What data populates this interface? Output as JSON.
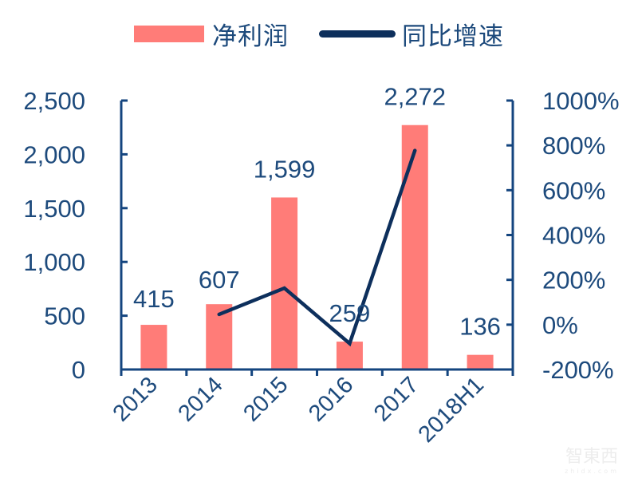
{
  "legend": {
    "bar_label": "净利润",
    "line_label": "同比增速"
  },
  "colors": {
    "bar": "#ff7c78",
    "line": "#0d2f5c",
    "axis": "#14457f",
    "text": "#1d4a7c"
  },
  "watermark": {
    "main": "智東西",
    "sub": "zhidx.com"
  },
  "chart_data": {
    "type": "bar",
    "title": "",
    "categories": [
      "2013",
      "2014",
      "2015",
      "2016",
      "2017",
      "2018H1"
    ],
    "series": [
      {
        "name": "净利润",
        "type": "bar",
        "axis": "left",
        "values": [
          415,
          607,
          1599,
          259,
          2272,
          136
        ],
        "labels": [
          "415",
          "607",
          "1,599",
          "259",
          "2,272",
          "136"
        ]
      },
      {
        "name": "同比增速",
        "type": "line",
        "axis": "right",
        "values": [
          null,
          46,
          163,
          -84,
          777,
          null
        ],
        "unit": "%"
      }
    ],
    "left_axis": {
      "ylim": [
        0,
        2500
      ],
      "ticks": [
        0,
        500,
        1000,
        1500,
        2000,
        2500
      ],
      "tick_labels": [
        "0",
        "500",
        "1,000",
        "1,500",
        "2,000",
        "2,500"
      ]
    },
    "right_axis": {
      "ylim": [
        -200,
        1000
      ],
      "ticks": [
        -200,
        0,
        200,
        400,
        600,
        800,
        1000
      ],
      "tick_labels": [
        "-200%",
        "0%",
        "200%",
        "400%",
        "600%",
        "800%",
        "1000%"
      ]
    },
    "xlabel": "",
    "ylabel": "",
    "grid": false,
    "legend_position": "top"
  }
}
